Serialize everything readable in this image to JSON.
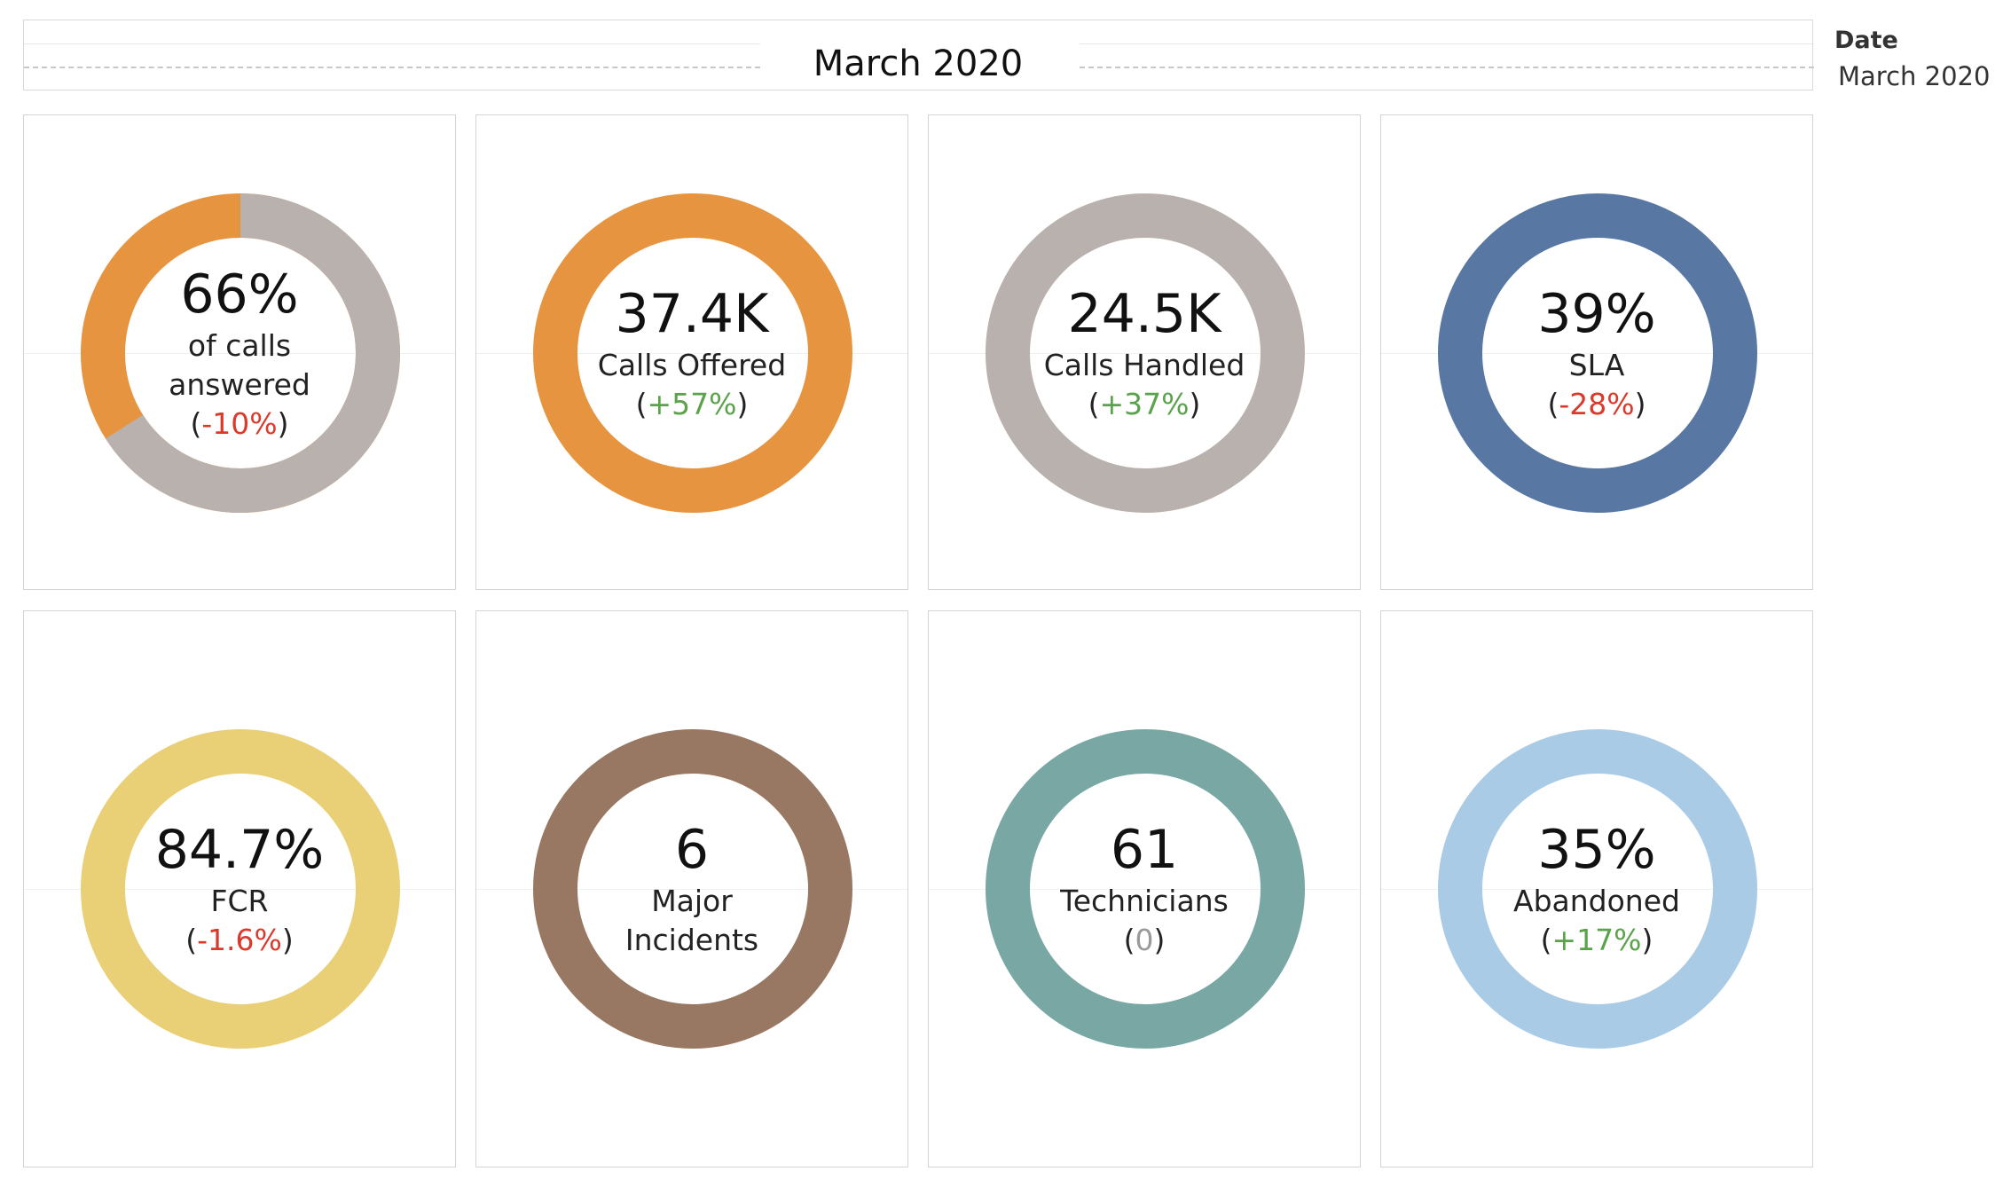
{
  "header": {
    "title": "March 2020"
  },
  "filter": {
    "label": "Date",
    "value": "March 2020"
  },
  "kpis": [
    {
      "value": "66%",
      "label_lines": [
        "of calls",
        "answered"
      ],
      "change": "-10%",
      "direction": "negative",
      "ring": {
        "filled_fraction": 0.66,
        "filled_color": "#b9b1ad",
        "remainder_color": "#e79441"
      }
    },
    {
      "value": "37.4K",
      "label_lines": [
        "Calls Offered"
      ],
      "change": "+57%",
      "direction": "positive",
      "ring": {
        "filled_fraction": 1,
        "filled_color": "#e79441"
      }
    },
    {
      "value": "24.5K",
      "label_lines": [
        "Calls Handled"
      ],
      "change": "+37%",
      "direction": "positive",
      "ring": {
        "filled_fraction": 1,
        "filled_color": "#b9b1ad"
      }
    },
    {
      "value": "39%",
      "label_lines": [
        "SLA"
      ],
      "change": "-28%",
      "direction": "negative",
      "ring": {
        "filled_fraction": 1,
        "filled_color": "#5878a3"
      }
    },
    {
      "value": "84.7%",
      "label_lines": [
        "FCR"
      ],
      "change": "-1.6%",
      "direction": "negative",
      "ring": {
        "filled_fraction": 1,
        "filled_color": "#e9d077"
      }
    },
    {
      "value": "6",
      "label_lines": [
        "Major",
        "Incidents"
      ],
      "change": "",
      "direction": "none",
      "ring": {
        "filled_fraction": 1,
        "filled_color": "#987862"
      }
    },
    {
      "value": "61",
      "label_lines": [
        "Technicians"
      ],
      "change": "0",
      "direction": "neutral",
      "ring": {
        "filled_fraction": 1,
        "filled_color": "#79a8a4"
      }
    },
    {
      "value": "35%",
      "label_lines": [
        "Abandoned"
      ],
      "change": "+17%",
      "direction": "positive",
      "ring": {
        "filled_fraction": 1,
        "filled_color": "#aacbe5"
      }
    }
  ]
}
